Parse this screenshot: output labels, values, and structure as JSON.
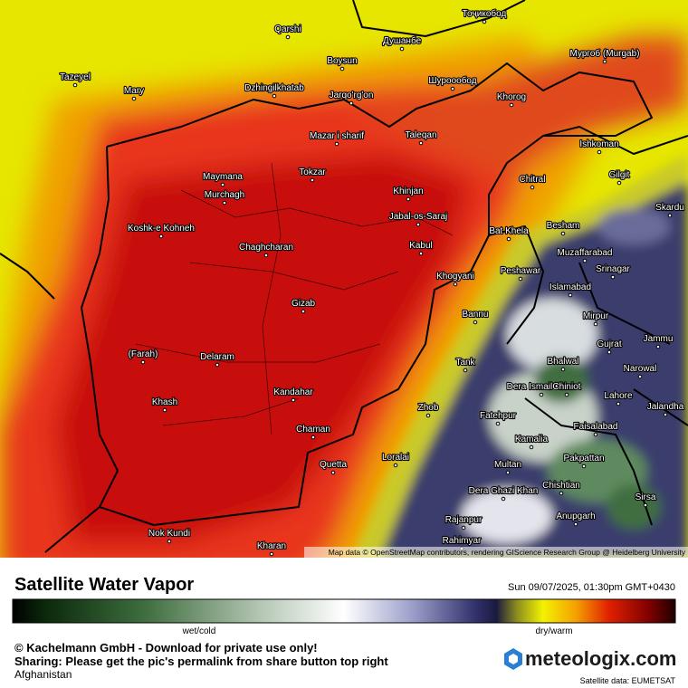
{
  "places": [
    "Qarshi",
    "Boysun",
    "Душанбе",
    "Тоҷикобод",
    "Tazeyel",
    "Mary",
    "Dzhingilkhatab",
    "Jarqo'rg'on",
    "Шуроообод",
    "Мургоб (Murgab)",
    "Khorog",
    "Mazar i sharif",
    "Taleqan",
    "Ishkoman",
    "Maymana",
    "Tokzar",
    "Gilgit",
    "Chitral",
    "Murchagh",
    "Khinjan",
    "Skardu",
    "Koshk-e Kohneh",
    "Jabal-os-Saraj",
    "Bat Khela",
    "Besham",
    "Chaghcharan",
    "Kabul",
    "Muzaffarabad",
    "Khogyani",
    "Peshawar",
    "Srinagar",
    "Islamabad",
    "Gizab",
    "Bannu",
    "Mirpur",
    "Jammu",
    "Gujrat",
    "(Farah)",
    "Delaram",
    "Tank",
    "Bhalwal",
    "Narowal",
    "Dera Ismail Khan",
    "Chiniot",
    "Lahore",
    "Jalandha",
    "Khash",
    "Kandahar",
    "Zhob",
    "Fatehpur",
    "Faisalabad",
    "Chaman",
    "Kamalia",
    "Loralai",
    "Quetta",
    "Multan",
    "Pakpattan",
    "Dera Ghazi Khan",
    "Chishtian",
    "Sirsa",
    "Anupgarh",
    "Rajanpur",
    "Nok Kundi",
    "Kharan",
    "Rahimyar"
  ],
  "attribution": "Map data © OpenStreetMap contributors, rendering GIScience Research Group @ Heidelberg University",
  "title": "Satellite Water Vapor",
  "timestamp": "Sun 09/07/2025, 01:30pm GMT+0430",
  "legend": {
    "low_label": "wet/cold",
    "high_label": "dry/warm"
  },
  "copyright": "© Kachelmann GmbH - Download for private use only!",
  "sharing": "Sharing: Please get the pic's permalink from share button top right",
  "region": "Afghanistan",
  "brand": "meteologix.com",
  "source": "Satellite data: EUMETSAT"
}
